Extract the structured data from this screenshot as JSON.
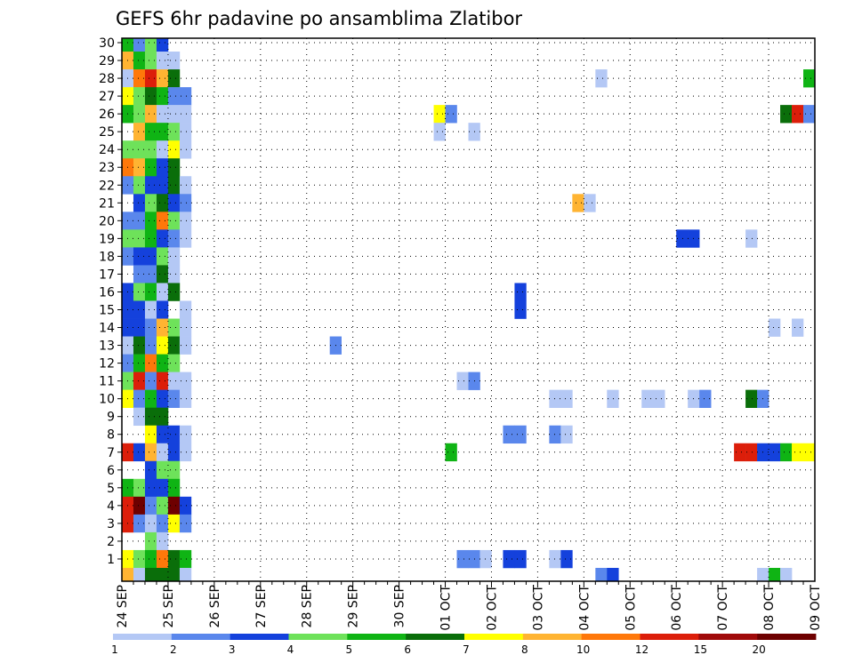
{
  "chart_data": {
    "type": "heatmap",
    "title": "GEFS 6hr padavine po ansamblima Zlatibor",
    "xlabel": "",
    "ylabel": "",
    "x_tick_labels": [
      "24 SEP",
      "25 SEP",
      "26 SEP",
      "27 SEP",
      "28 SEP",
      "29 SEP",
      "30 SEP",
      "01 OCT",
      "02 OCT",
      "03 OCT",
      "04 OCT",
      "05 OCT",
      "06 OCT",
      "07 OCT",
      "08 OCT",
      "09 OCT"
    ],
    "y_tick_labels": [
      "1",
      "2",
      "3",
      "4",
      "5",
      "6",
      "7",
      "8",
      "9",
      "10",
      "11",
      "12",
      "13",
      "14",
      "15",
      "16",
      "17",
      "18",
      "19",
      "20",
      "21",
      "22",
      "23",
      "24",
      "25",
      "26",
      "27",
      "28",
      "29",
      "30"
    ],
    "x_range_steps": [
      0,
      60
    ],
    "y_range_members": [
      0,
      30
    ],
    "grid": true,
    "colorbar": {
      "labels": [
        "1",
        "2",
        "3",
        "4",
        "5",
        "6",
        "7",
        "8",
        "10",
        "12",
        "15",
        "20"
      ],
      "colors": [
        "#b4c8f5",
        "#5a87ec",
        "#1441dc",
        "#6ee25a",
        "#0fb414",
        "#0a6e0a",
        "#ffff00",
        "#ffb432",
        "#ff780a",
        "#dc1e0a",
        "#a00a0a",
        "#6e0000"
      ]
    },
    "cells": [
      [
        0,
        30,
        5
      ],
      [
        1,
        30,
        2
      ],
      [
        2,
        30,
        4
      ],
      [
        3,
        30,
        3
      ],
      [
        0,
        29,
        8
      ],
      [
        1,
        29,
        5
      ],
      [
        2,
        29,
        4
      ],
      [
        3,
        29,
        1
      ],
      [
        4,
        29,
        1
      ],
      [
        0,
        28,
        1
      ],
      [
        1,
        28,
        9
      ],
      [
        2,
        28,
        10
      ],
      [
        3,
        28,
        8
      ],
      [
        4,
        28,
        6
      ],
      [
        41,
        28,
        1
      ],
      [
        59,
        28,
        5
      ],
      [
        0,
        27,
        7
      ],
      [
        1,
        27,
        4
      ],
      [
        2,
        27,
        6
      ],
      [
        3,
        27,
        5
      ],
      [
        4,
        27,
        2
      ],
      [
        5,
        27,
        2
      ],
      [
        0,
        26,
        5
      ],
      [
        1,
        26,
        4
      ],
      [
        2,
        26,
        8
      ],
      [
        3,
        26,
        1
      ],
      [
        4,
        26,
        1
      ],
      [
        5,
        26,
        1
      ],
      [
        27,
        26,
        7
      ],
      [
        28,
        26,
        2
      ],
      [
        57,
        26,
        6
      ],
      [
        58,
        26,
        10
      ],
      [
        59,
        26,
        2
      ],
      [
        1,
        25,
        8
      ],
      [
        2,
        25,
        5
      ],
      [
        3,
        25,
        5
      ],
      [
        4,
        25,
        4
      ],
      [
        5,
        25,
        1
      ],
      [
        27,
        25,
        1
      ],
      [
        30,
        25,
        1
      ],
      [
        0,
        24,
        4
      ],
      [
        1,
        24,
        4
      ],
      [
        2,
        24,
        4
      ],
      [
        3,
        24,
        1
      ],
      [
        4,
        24,
        7
      ],
      [
        5,
        24,
        1
      ],
      [
        0,
        23,
        9
      ],
      [
        1,
        23,
        8
      ],
      [
        2,
        23,
        5
      ],
      [
        3,
        23,
        3
      ],
      [
        4,
        23,
        6
      ],
      [
        0,
        22,
        2
      ],
      [
        1,
        22,
        4
      ],
      [
        2,
        22,
        3
      ],
      [
        3,
        22,
        3
      ],
      [
        4,
        22,
        6
      ],
      [
        5,
        22,
        1
      ],
      [
        1,
        21,
        3
      ],
      [
        2,
        21,
        4
      ],
      [
        3,
        21,
        6
      ],
      [
        4,
        21,
        3
      ],
      [
        5,
        21,
        2
      ],
      [
        39,
        21,
        8
      ],
      [
        40,
        21,
        1
      ],
      [
        0,
        20,
        2
      ],
      [
        1,
        20,
        2
      ],
      [
        2,
        20,
        5
      ],
      [
        3,
        20,
        9
      ],
      [
        4,
        20,
        4
      ],
      [
        5,
        20,
        1
      ],
      [
        0,
        19,
        4
      ],
      [
        1,
        19,
        4
      ],
      [
        2,
        19,
        5
      ],
      [
        3,
        19,
        3
      ],
      [
        4,
        19,
        2
      ],
      [
        5,
        19,
        1
      ],
      [
        48,
        19,
        3
      ],
      [
        49,
        19,
        3
      ],
      [
        54,
        19,
        1
      ],
      [
        0,
        18,
        2
      ],
      [
        1,
        18,
        3
      ],
      [
        2,
        18,
        3
      ],
      [
        3,
        18,
        4
      ],
      [
        4,
        18,
        1
      ],
      [
        1,
        17,
        2
      ],
      [
        2,
        17,
        2
      ],
      [
        3,
        17,
        6
      ],
      [
        4,
        17,
        1
      ],
      [
        0,
        16,
        3
      ],
      [
        1,
        16,
        4
      ],
      [
        2,
        16,
        5
      ],
      [
        3,
        16,
        1
      ],
      [
        4,
        16,
        6
      ],
      [
        34,
        16,
        3
      ],
      [
        0,
        15,
        3
      ],
      [
        1,
        15,
        3
      ],
      [
        2,
        15,
        1
      ],
      [
        3,
        15,
        3
      ],
      [
        5,
        15,
        1
      ],
      [
        34,
        15,
        3
      ],
      [
        0,
        14,
        3
      ],
      [
        1,
        14,
        3
      ],
      [
        2,
        14,
        2
      ],
      [
        3,
        14,
        8
      ],
      [
        4,
        14,
        4
      ],
      [
        5,
        14,
        1
      ],
      [
        56,
        14,
        1
      ],
      [
        58,
        14,
        1
      ],
      [
        0,
        13,
        1
      ],
      [
        1,
        13,
        6
      ],
      [
        2,
        13,
        2
      ],
      [
        3,
        13,
        7
      ],
      [
        4,
        13,
        6
      ],
      [
        5,
        13,
        1
      ],
      [
        18,
        13,
        2
      ],
      [
        0,
        12,
        2
      ],
      [
        1,
        12,
        5
      ],
      [
        2,
        12,
        9
      ],
      [
        3,
        12,
        5
      ],
      [
        4,
        12,
        4
      ],
      [
        0,
        11,
        4
      ],
      [
        1,
        11,
        10
      ],
      [
        2,
        11,
        2
      ],
      [
        3,
        11,
        10
      ],
      [
        4,
        11,
        1
      ],
      [
        5,
        11,
        1
      ],
      [
        29,
        11,
        1
      ],
      [
        30,
        11,
        2
      ],
      [
        0,
        10,
        7
      ],
      [
        1,
        10,
        2
      ],
      [
        2,
        10,
        5
      ],
      [
        3,
        10,
        3
      ],
      [
        4,
        10,
        2
      ],
      [
        5,
        10,
        1
      ],
      [
        37,
        10,
        1
      ],
      [
        38,
        10,
        1
      ],
      [
        42,
        10,
        1
      ],
      [
        45,
        10,
        1
      ],
      [
        46,
        10,
        1
      ],
      [
        49,
        10,
        1
      ],
      [
        50,
        10,
        2
      ],
      [
        54,
        10,
        6
      ],
      [
        55,
        10,
        2
      ],
      [
        1,
        9,
        1
      ],
      [
        2,
        9,
        6
      ],
      [
        3,
        9,
        6
      ],
      [
        2,
        8,
        7
      ],
      [
        3,
        8,
        3
      ],
      [
        4,
        8,
        3
      ],
      [
        5,
        8,
        1
      ],
      [
        33,
        8,
        2
      ],
      [
        34,
        8,
        2
      ],
      [
        37,
        8,
        2
      ],
      [
        38,
        8,
        1
      ],
      [
        0,
        7,
        10
      ],
      [
        1,
        7,
        3
      ],
      [
        2,
        7,
        8
      ],
      [
        3,
        7,
        1
      ],
      [
        4,
        7,
        3
      ],
      [
        5,
        7,
        1
      ],
      [
        28,
        7,
        5
      ],
      [
        53,
        7,
        10
      ],
      [
        54,
        7,
        10
      ],
      [
        55,
        7,
        3
      ],
      [
        56,
        7,
        3
      ],
      [
        57,
        7,
        5
      ],
      [
        58,
        7,
        7
      ],
      [
        59,
        7,
        7
      ],
      [
        2,
        6,
        3
      ],
      [
        3,
        6,
        4
      ],
      [
        4,
        6,
        4
      ],
      [
        0,
        5,
        5
      ],
      [
        1,
        5,
        4
      ],
      [
        2,
        5,
        3
      ],
      [
        3,
        5,
        3
      ],
      [
        4,
        5,
        5
      ],
      [
        0,
        4,
        10
      ],
      [
        1,
        4,
        12
      ],
      [
        2,
        4,
        2
      ],
      [
        3,
        4,
        4
      ],
      [
        4,
        4,
        12
      ],
      [
        5,
        4,
        3
      ],
      [
        0,
        3,
        10
      ],
      [
        1,
        3,
        2
      ],
      [
        2,
        3,
        1
      ],
      [
        3,
        3,
        2
      ],
      [
        4,
        3,
        7
      ],
      [
        5,
        3,
        2
      ],
      [
        2,
        2,
        4
      ],
      [
        3,
        2,
        1
      ],
      [
        0,
        1,
        7
      ],
      [
        1,
        1,
        4
      ],
      [
        2,
        1,
        5
      ],
      [
        3,
        1,
        9
      ],
      [
        4,
        1,
        6
      ],
      [
        5,
        1,
        5
      ],
      [
        29,
        1,
        2
      ],
      [
        30,
        1,
        2
      ],
      [
        31,
        1,
        1
      ],
      [
        33,
        1,
        3
      ],
      [
        34,
        1,
        3
      ],
      [
        37,
        1,
        1
      ],
      [
        38,
        1,
        3
      ],
      [
        0,
        0,
        8
      ],
      [
        1,
        0,
        1
      ],
      [
        2,
        0,
        6
      ],
      [
        3,
        0,
        6
      ],
      [
        4,
        0,
        6
      ],
      [
        5,
        0,
        1
      ],
      [
        41,
        0,
        2
      ],
      [
        42,
        0,
        3
      ],
      [
        55,
        0,
        1
      ],
      [
        56,
        0,
        5
      ],
      [
        57,
        0,
        1
      ]
    ]
  }
}
